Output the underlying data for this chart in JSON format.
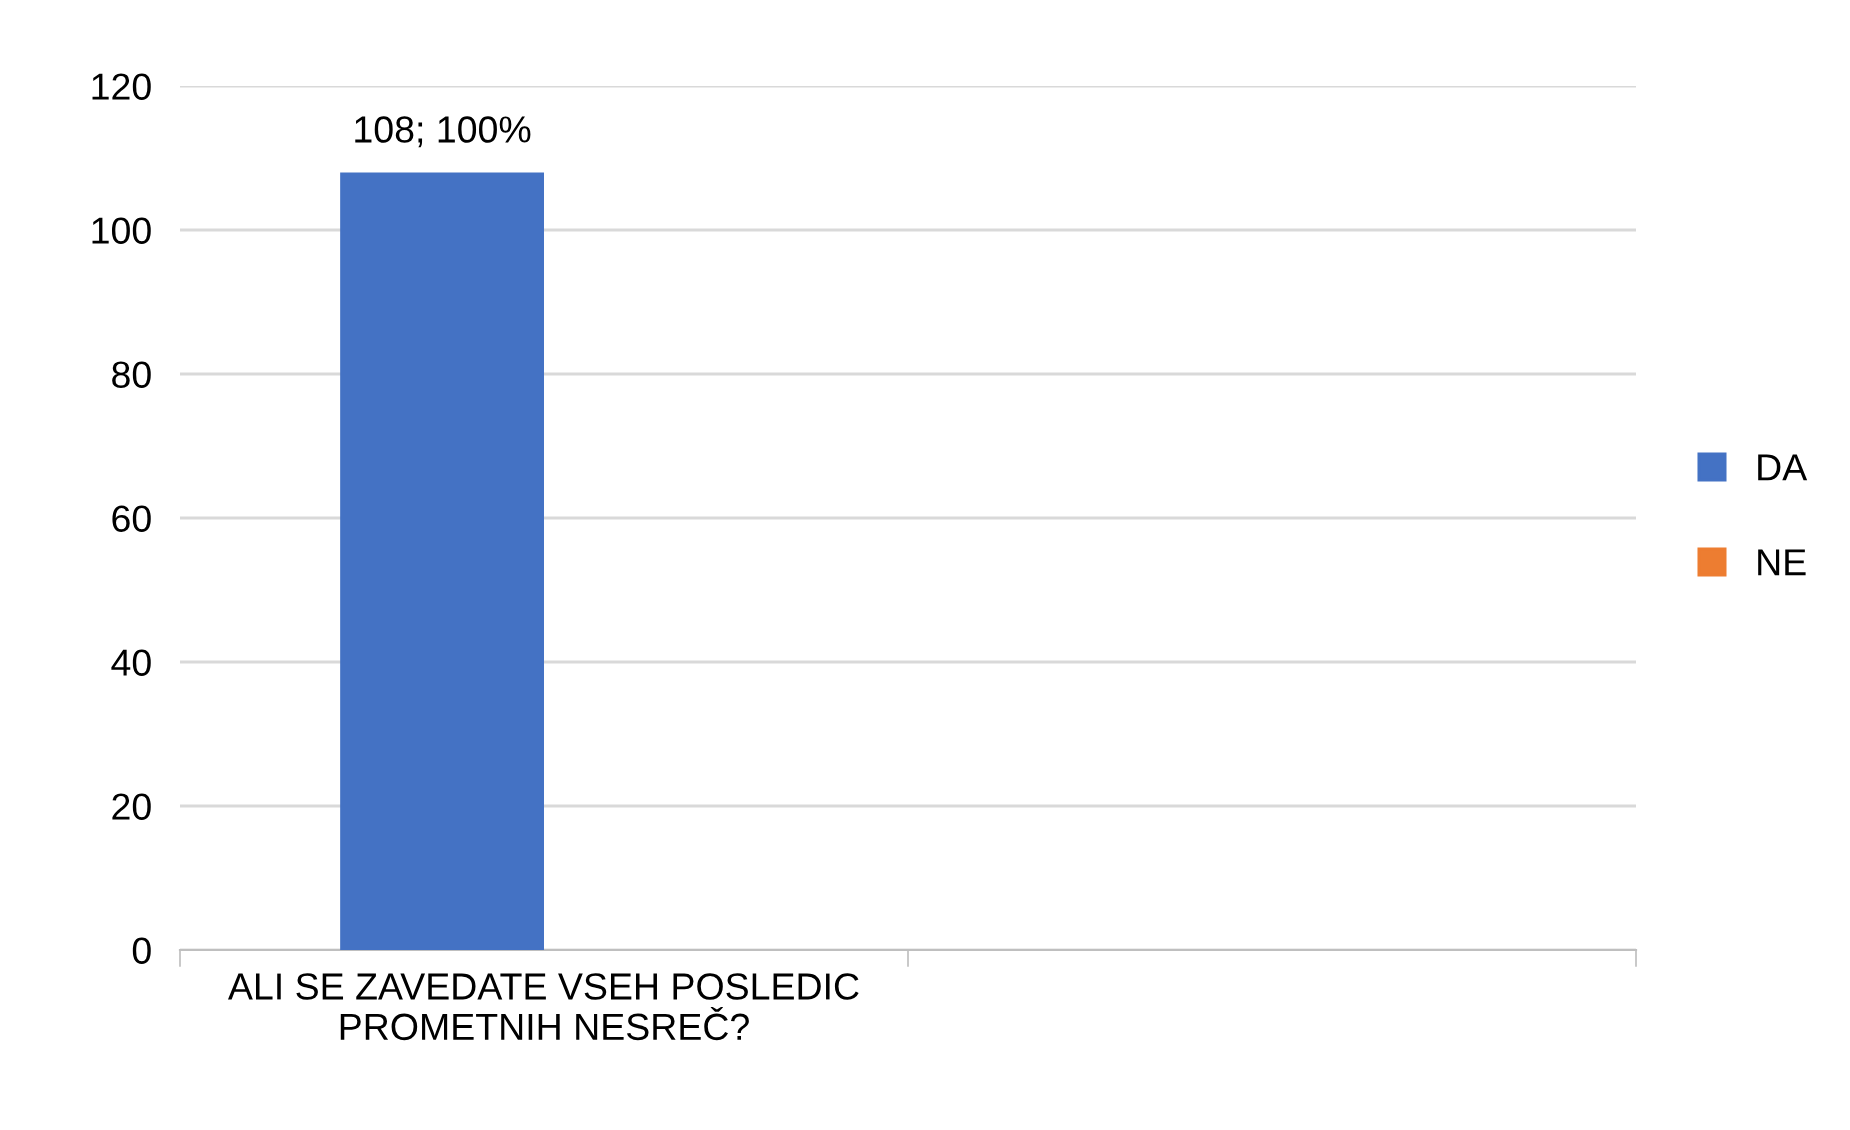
{
  "chart_data": {
    "type": "bar",
    "categories": [
      "ALI SE ZAVEDATE VSEH POSLEDIC\nPROMETNIH NESREČ?",
      null
    ],
    "series": [
      {
        "name": "DA",
        "color": "#4472c4",
        "values": [
          108,
          null
        ],
        "value_labels": [
          "108; 100%",
          null
        ]
      },
      {
        "name": "NE",
        "color": "#ed7d31",
        "values": [
          0,
          null
        ]
      }
    ],
    "ylim": [
      0,
      120
    ],
    "yticks": [
      0,
      20,
      40,
      60,
      80,
      100,
      120
    ],
    "grid": "y",
    "legend": "right"
  }
}
